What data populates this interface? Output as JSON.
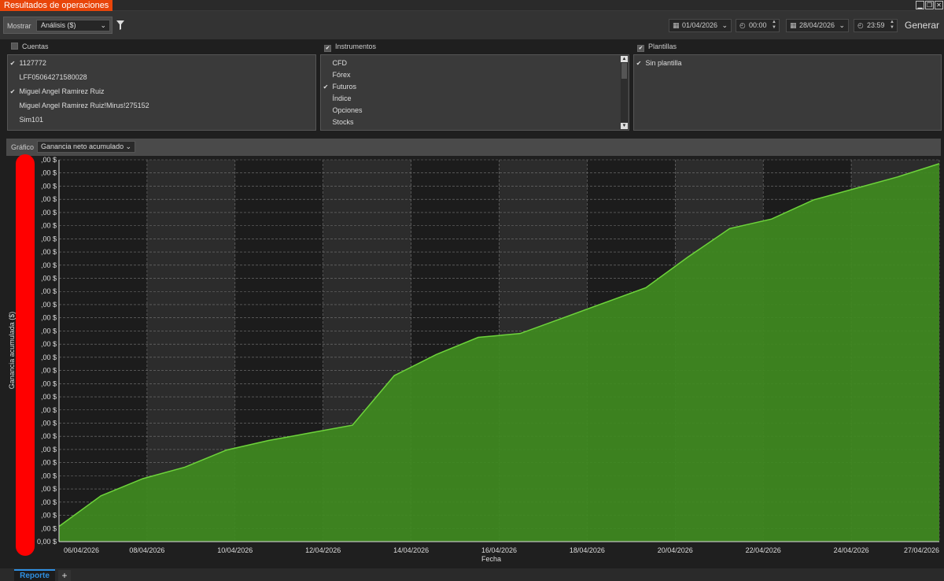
{
  "window": {
    "title": "Resultados de operaciones",
    "buttons": [
      "▁",
      "❐",
      "✕"
    ]
  },
  "toolbar": {
    "mostrar_label": "Mostrar",
    "mostrar_value": "Análisis ($)",
    "start_date": "01/04/2026",
    "start_time": "00:00",
    "end_date": "28/04/2026",
    "end_time": "23:59",
    "generate_label": "Generar"
  },
  "accounts": {
    "header": "Cuentas",
    "items": [
      {
        "label": "1127772",
        "checked": true
      },
      {
        "label": "LFF05064271580028",
        "checked": false
      },
      {
        "label": "Miguel Angel Ramirez Ruiz",
        "checked": true
      },
      {
        "label": "Miguel Angel Ramirez Ruiz!Mirus!275152",
        "checked": false
      },
      {
        "label": "Sim101",
        "checked": false
      }
    ]
  },
  "instruments": {
    "header": "Instrumentos",
    "items": [
      {
        "label": "CFD",
        "checked": false
      },
      {
        "label": "Fórex",
        "checked": false
      },
      {
        "label": "Futuros",
        "checked": true
      },
      {
        "label": "Índice",
        "checked": false
      },
      {
        "label": "Opciones",
        "checked": false
      },
      {
        "label": "Stocks",
        "checked": false
      }
    ]
  },
  "templates": {
    "header": "Plantillas",
    "items": [
      {
        "label": "Sin plantilla",
        "checked": true
      }
    ]
  },
  "chart_header": {
    "label": "Gráfico",
    "value": "Ganancia neto acumulado"
  },
  "chart_data": {
    "type": "area",
    "title": "",
    "xlabel": "Fecha",
    "ylabel": "Ganancia acumulada ($)",
    "x_ticks": [
      "06/04/2026",
      "08/04/2026",
      "10/04/2026",
      "12/04/2026",
      "14/04/2026",
      "16/04/2026",
      "18/04/2026",
      "20/04/2026",
      "22/04/2026",
      "24/04/2026",
      "27/04/2026"
    ],
    "y_tick_suffix": ",00 $",
    "y_tick_count": 30,
    "y_tick_last": "0,00 $",
    "ylim": [
      0,
      100
    ],
    "points": [
      {
        "x": 0,
        "y": 4
      },
      {
        "x": 1,
        "y": 12
      },
      {
        "x": 2,
        "y": 16.5
      },
      {
        "x": 3,
        "y": 19.5
      },
      {
        "x": 4,
        "y": 24
      },
      {
        "x": 5,
        "y": 26.5
      },
      {
        "x": 6,
        "y": 28.5
      },
      {
        "x": 7,
        "y": 30.5
      },
      {
        "x": 8,
        "y": 43.5
      },
      {
        "x": 9,
        "y": 49
      },
      {
        "x": 10,
        "y": 53.5
      },
      {
        "x": 11,
        "y": 54.5
      },
      {
        "x": 12,
        "y": 58.5
      },
      {
        "x": 13,
        "y": 62.5
      },
      {
        "x": 14,
        "y": 66.5
      },
      {
        "x": 15,
        "y": 74.5
      },
      {
        "x": 16,
        "y": 82
      },
      {
        "x": 17,
        "y": 84.5
      },
      {
        "x": 18,
        "y": 89.5
      },
      {
        "x": 19,
        "y": 92.5
      },
      {
        "x": 20,
        "y": 95.5
      },
      {
        "x": 21,
        "y": 99
      }
    ],
    "grid": true,
    "colors": {
      "fill": "#3f8a1f",
      "line": "#6ed43b",
      "band_dark": "#1c1c1c",
      "band_light": "#2c2c2c"
    }
  },
  "tabs": {
    "active": "Reporte",
    "add": "+"
  }
}
